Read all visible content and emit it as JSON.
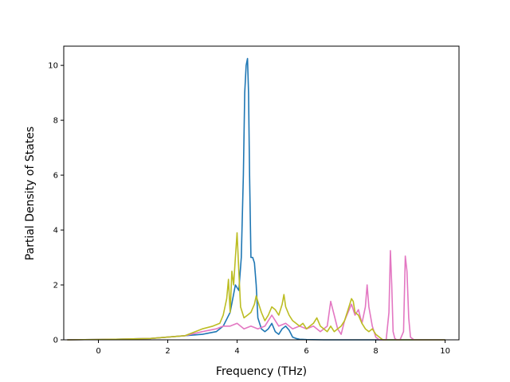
{
  "chart_data": {
    "type": "line",
    "title": "",
    "xlabel": "Frequency (THz)",
    "ylabel": "Partial Density of States",
    "xlim": [
      -1.0,
      10.4
    ],
    "ylim": [
      0,
      10.7
    ],
    "xticks": [
      0,
      2,
      4,
      6,
      8,
      10
    ],
    "xtick_labels": [
      "0",
      "2",
      "4",
      "6",
      "8",
      "10"
    ],
    "yticks": [
      0,
      2,
      4,
      6,
      8,
      10
    ],
    "ytick_labels": [
      "0",
      "2",
      "4",
      "6",
      "8",
      "10"
    ],
    "grid": false,
    "legend": "none",
    "series": [
      {
        "color": "#1f77b4",
        "x": [
          -0.9,
          0.5,
          1.5,
          2.0,
          2.5,
          3.0,
          3.4,
          3.6,
          3.8,
          3.95,
          4.05,
          4.12,
          4.18,
          4.22,
          4.26,
          4.3,
          4.33,
          4.36,
          4.4,
          4.45,
          4.5,
          4.55,
          4.6,
          4.7,
          4.8,
          4.9,
          5.0,
          5.1,
          5.2,
          5.3,
          5.4,
          5.5,
          5.6,
          5.7,
          5.8,
          6.0,
          6.5,
          7.0,
          8.0,
          10.0
        ],
        "y": [
          0,
          0.02,
          0.05,
          0.1,
          0.15,
          0.2,
          0.3,
          0.5,
          1.0,
          2.0,
          1.8,
          3.0,
          6.0,
          9.0,
          10.0,
          10.25,
          9.0,
          6.0,
          3.0,
          3.0,
          2.8,
          2.0,
          0.8,
          0.4,
          0.3,
          0.4,
          0.6,
          0.3,
          0.2,
          0.4,
          0.5,
          0.35,
          0.1,
          0.05,
          0.02,
          0.01,
          0,
          0,
          0,
          0
        ]
      },
      {
        "color": "#e377c2",
        "x": [
          -0.9,
          0.5,
          1.5,
          2.0,
          2.5,
          3.0,
          3.4,
          3.6,
          3.8,
          4.0,
          4.2,
          4.4,
          4.6,
          4.8,
          5.0,
          5.2,
          5.4,
          5.6,
          5.8,
          6.0,
          6.2,
          6.4,
          6.6,
          6.7,
          6.8,
          6.9,
          7.0,
          7.1,
          7.2,
          7.3,
          7.4,
          7.5,
          7.6,
          7.7,
          7.75,
          7.8,
          7.9,
          8.0,
          8.1,
          8.3,
          8.38,
          8.42,
          8.46,
          8.5,
          8.55,
          8.6,
          8.7,
          8.8,
          8.85,
          8.9,
          8.95,
          9.0,
          9.1,
          9.5,
          10.0
        ],
        "y": [
          0,
          0.02,
          0.05,
          0.1,
          0.15,
          0.3,
          0.4,
          0.5,
          0.5,
          0.6,
          0.4,
          0.5,
          0.4,
          0.5,
          0.9,
          0.5,
          0.6,
          0.4,
          0.5,
          0.4,
          0.5,
          0.3,
          0.5,
          1.4,
          0.9,
          0.4,
          0.2,
          0.7,
          1.0,
          1.3,
          0.9,
          1.1,
          0.6,
          1.2,
          2.0,
          1.2,
          0.5,
          0.1,
          0,
          0,
          1.0,
          3.25,
          2.0,
          0.3,
          0.05,
          0,
          0,
          0.3,
          3.05,
          2.5,
          0.8,
          0.1,
          0,
          0,
          0
        ]
      },
      {
        "color": "#bcbd22",
        "x": [
          -0.9,
          0.5,
          1.5,
          2.0,
          2.5,
          3.0,
          3.3,
          3.5,
          3.6,
          3.7,
          3.75,
          3.8,
          3.85,
          3.9,
          3.95,
          4.0,
          4.05,
          4.1,
          4.2,
          4.3,
          4.4,
          4.5,
          4.55,
          4.6,
          4.7,
          4.8,
          4.9,
          5.0,
          5.1,
          5.2,
          5.3,
          5.35,
          5.4,
          5.5,
          5.6,
          5.7,
          5.8,
          5.9,
          6.0,
          6.1,
          6.2,
          6.3,
          6.4,
          6.5,
          6.6,
          6.7,
          6.8,
          6.9,
          7.0,
          7.1,
          7.2,
          7.3,
          7.35,
          7.4,
          7.5,
          7.6,
          7.7,
          7.8,
          7.9,
          8.0,
          8.2,
          8.5,
          9.0,
          10.0
        ],
        "y": [
          0,
          0.02,
          0.05,
          0.1,
          0.15,
          0.4,
          0.5,
          0.6,
          0.9,
          1.5,
          2.2,
          1.0,
          2.5,
          2.0,
          3.0,
          3.9,
          2.5,
          1.2,
          0.8,
          0.9,
          1.0,
          1.3,
          1.6,
          1.4,
          1.0,
          0.7,
          0.9,
          1.2,
          1.1,
          0.9,
          1.3,
          1.65,
          1.2,
          0.9,
          0.7,
          0.6,
          0.5,
          0.6,
          0.4,
          0.5,
          0.6,
          0.8,
          0.5,
          0.4,
          0.3,
          0.5,
          0.3,
          0.4,
          0.5,
          0.7,
          1.1,
          1.5,
          1.4,
          1.0,
          0.9,
          0.6,
          0.4,
          0.3,
          0.4,
          0.2,
          0,
          0,
          0,
          0
        ]
      }
    ]
  }
}
